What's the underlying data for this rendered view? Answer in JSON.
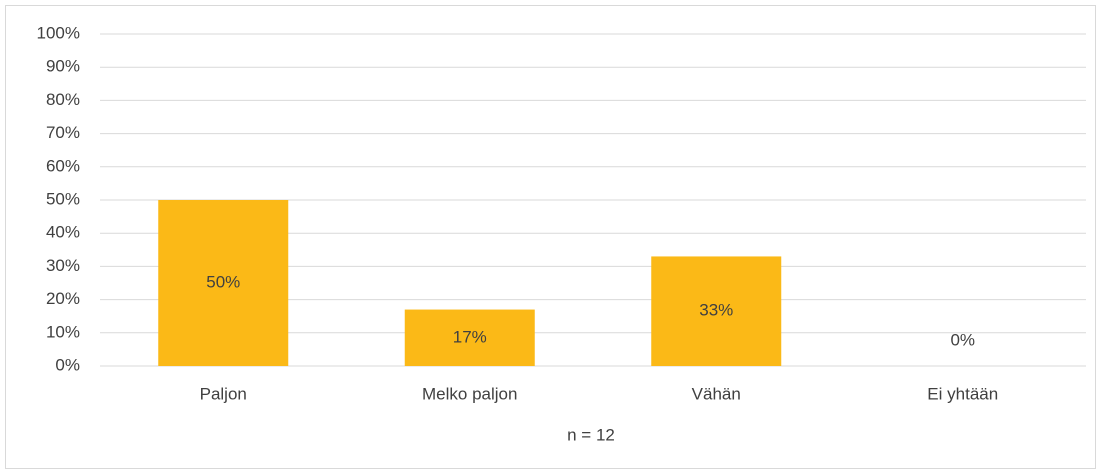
{
  "chart_data": {
    "type": "bar",
    "categories": [
      "Paljon",
      "Melko paljon",
      "Vähän",
      "Ei yhtään"
    ],
    "values": [
      50,
      17,
      33,
      0
    ],
    "value_labels": [
      "50%",
      "17%",
      "33%",
      "0%"
    ],
    "color": "#fbb917",
    "x_label": "n = 12",
    "ylim": [
      0,
      100
    ],
    "yticks": [
      {
        "value": 0,
        "label": "0%"
      },
      {
        "value": 10,
        "label": "10%"
      },
      {
        "value": 20,
        "label": "20%"
      },
      {
        "value": 30,
        "label": "30%"
      },
      {
        "value": 40,
        "label": "40%"
      },
      {
        "value": 50,
        "label": "50%"
      },
      {
        "value": 60,
        "label": "60%"
      },
      {
        "value": 70,
        "label": "70%"
      },
      {
        "value": 80,
        "label": "80%"
      },
      {
        "value": 90,
        "label": "90%"
      },
      {
        "value": 100,
        "label": "100%"
      }
    ],
    "grid": true
  }
}
